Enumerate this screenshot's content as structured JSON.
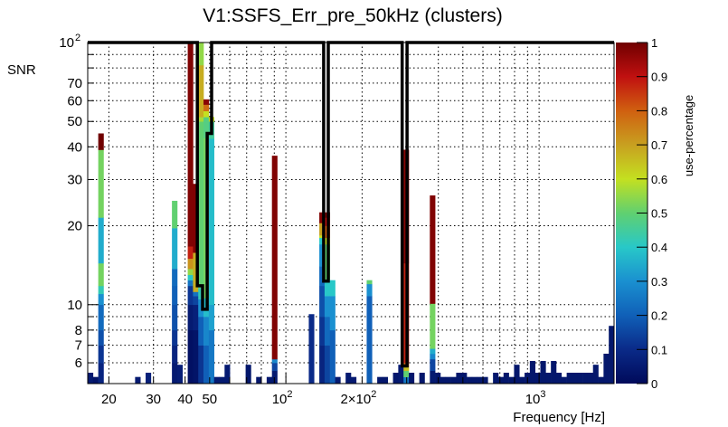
{
  "chart_data": {
    "type": "heatmap",
    "title": "V1:SSFS_Err_pre_50kHz (clusters)",
    "xlabel": "Frequency [Hz]",
    "ylabel": "SNR",
    "zlabel": "use-percentage",
    "xscale": "log",
    "yscale": "log",
    "xlim": [
      16.5,
      1977
    ],
    "ylim": [
      5,
      100
    ],
    "zlim": [
      0,
      1
    ],
    "x_bins": 100,
    "grid": true,
    "x_ticks": [
      {
        "value": 20,
        "label": "20"
      },
      {
        "value": 30,
        "label": "30"
      },
      {
        "value": 40,
        "label": "40"
      },
      {
        "value": 50,
        "label": "50"
      },
      {
        "value": 100,
        "label": "10",
        "sup": "2"
      },
      {
        "value": 200,
        "label": "2×10",
        "sup": "2"
      },
      {
        "value": 1000,
        "label": "10",
        "sup": "3"
      }
    ],
    "x_grid": [
      20,
      30,
      40,
      50,
      60,
      70,
      80,
      90,
      100,
      200,
      300,
      400,
      500,
      600,
      700,
      800,
      900,
      1000
    ],
    "y_ticks": [
      {
        "value": 100,
        "label": "10",
        "sup": "2"
      },
      {
        "value": 70,
        "label": "70"
      },
      {
        "value": 60,
        "label": "60"
      },
      {
        "value": 50,
        "label": "50"
      },
      {
        "value": 40,
        "label": "40"
      },
      {
        "value": 30,
        "label": "30"
      },
      {
        "value": 20,
        "label": "20"
      },
      {
        "value": 10,
        "label": "10"
      },
      {
        "value": 8,
        "label": "8"
      },
      {
        "value": 7,
        "label": "7"
      },
      {
        "value": 6,
        "label": "6"
      }
    ],
    "y_grid": [
      6,
      7,
      8,
      9,
      10,
      20,
      30,
      40,
      50,
      60,
      70,
      80,
      90,
      100
    ],
    "z_ticks": [
      "0",
      "0.1",
      "0.2",
      "0.3",
      "0.4",
      "0.5",
      "0.6",
      "0.7",
      "0.8",
      "0.9",
      "1"
    ],
    "palette": [
      "#000a5a",
      "#0a2a88",
      "#1060b8",
      "#1a90d0",
      "#28c8c8",
      "#60d070",
      "#c4e020",
      "#c8a020",
      "#d06010",
      "#c01010",
      "#700000"
    ],
    "columns": [
      {
        "bin": 0,
        "cells": [
          [
            5.5,
            0.05
          ]
        ]
      },
      {
        "bin": 1,
        "cells": [
          [
            5.3,
            0.03
          ]
        ]
      },
      {
        "bin": 2,
        "cells": [
          [
            6,
            0.08
          ],
          [
            7,
            0.12
          ],
          [
            8,
            0.17
          ],
          [
            10,
            0.22
          ],
          [
            11,
            0.3
          ],
          [
            11.8,
            0.42
          ],
          [
            14.4,
            0.52
          ],
          [
            21.5,
            0.35
          ],
          [
            39,
            0.52
          ],
          [
            45,
            1.0
          ]
        ]
      },
      {
        "bin": 9,
        "cells": [
          [
            5.3,
            0.05
          ]
        ]
      },
      {
        "bin": 11,
        "cells": [
          [
            5.5,
            0.07
          ]
        ]
      },
      {
        "bin": 16,
        "cells": [
          [
            6,
            0.05
          ],
          [
            7,
            0.08
          ],
          [
            8,
            0.12
          ],
          [
            10,
            0.17
          ],
          [
            11.8,
            0.2
          ],
          [
            13.7,
            0.22
          ],
          [
            19.6,
            0.35
          ],
          [
            24.9,
            0.5
          ]
        ]
      },
      {
        "bin": 17,
        "cells": [
          [
            5.9,
            0.06
          ]
        ]
      },
      {
        "bin": 19,
        "cells": [
          [
            8,
            0.02
          ],
          [
            10,
            0.05
          ],
          [
            11.8,
            0.12
          ],
          [
            12.4,
            0.24
          ],
          [
            13,
            0.4
          ],
          [
            13.7,
            0.55
          ],
          [
            15,
            0.72
          ],
          [
            16.7,
            0.88
          ],
          [
            100,
            0.98
          ]
        ]
      },
      {
        "bin": 20,
        "cells": [
          [
            8,
            0.03
          ],
          [
            10,
            0.07
          ],
          [
            10.8,
            0.15
          ],
          [
            11.2,
            0.24
          ],
          [
            15.8,
            0.68
          ],
          [
            28.9,
            0.98
          ]
        ]
      },
      {
        "bin": 21,
        "cells": [
          [
            7,
            0.12
          ],
          [
            9,
            0.2
          ],
          [
            10.5,
            0.3
          ],
          [
            11.6,
            0.42
          ],
          [
            50,
            0.5
          ],
          [
            52,
            0.57
          ],
          [
            82,
            0.68
          ],
          [
            100,
            0.55
          ]
        ]
      },
      {
        "bin": 22,
        "cells": [
          [
            7,
            0.2
          ],
          [
            9,
            0.28
          ],
          [
            10.6,
            0.38
          ],
          [
            43.3,
            0.52
          ],
          [
            52,
            0.48
          ],
          [
            54.8,
            0.6
          ],
          [
            58,
            0.78
          ],
          [
            60.7,
            0.97
          ]
        ]
      },
      {
        "bin": 23,
        "cells": [
          [
            8,
            0.25
          ],
          [
            10,
            0.33
          ],
          [
            43,
            0.38
          ],
          [
            50,
            0.45
          ],
          [
            52,
            0.6
          ]
        ]
      },
      {
        "bin": 24,
        "cells": [
          [
            5.3,
            0.05
          ]
        ]
      },
      {
        "bin": 25,
        "cells": [
          [
            5.3,
            0.05
          ]
        ]
      },
      {
        "bin": 26,
        "cells": [
          [
            5.9,
            0.05
          ]
        ]
      },
      {
        "bin": 30,
        "cells": [
          [
            5.9,
            0.04
          ]
        ]
      },
      {
        "bin": 32,
        "cells": [
          [
            5.3,
            0.04
          ]
        ]
      },
      {
        "bin": 34,
        "cells": [
          [
            5.3,
            0.05
          ]
        ]
      },
      {
        "bin": 35,
        "cells": [
          [
            5.6,
            0.05
          ],
          [
            6,
            0.15
          ],
          [
            6.2,
            0.28
          ],
          [
            37,
            0.98
          ]
        ]
      },
      {
        "bin": 42,
        "cells": [
          [
            9.2,
            0.1
          ]
        ]
      },
      {
        "bin": 44,
        "cells": [
          [
            7,
            0.08
          ],
          [
            9,
            0.12
          ],
          [
            11.8,
            0.17
          ],
          [
            14,
            0.22
          ],
          [
            17,
            0.3
          ],
          [
            18,
            0.4
          ],
          [
            18.4,
            0.6
          ],
          [
            20.5,
            0.7
          ],
          [
            22.5,
            0.98
          ]
        ]
      },
      {
        "bin": 45,
        "cells": [
          [
            7,
            0.15
          ],
          [
            9,
            0.22
          ],
          [
            10.8,
            0.3
          ],
          [
            12.4,
            0.4
          ],
          [
            17,
            0.5
          ],
          [
            18,
            0.6
          ],
          [
            20,
            0.8
          ],
          [
            21.5,
            0.9
          ],
          [
            22.5,
            0.98
          ]
        ]
      },
      {
        "bin": 46,
        "cells": [
          [
            8,
            0.2
          ],
          [
            10.8,
            0.3
          ],
          [
            12.4,
            0.4
          ]
        ]
      },
      {
        "bin": 47,
        "cells": [
          [
            5.3,
            0.05
          ]
        ]
      },
      {
        "bin": 49,
        "cells": [
          [
            5.5,
            0.05
          ]
        ]
      },
      {
        "bin": 50,
        "cells": [
          [
            5.3,
            0.05
          ]
        ]
      },
      {
        "bin": 53,
        "cells": [
          [
            10.8,
            0.2
          ],
          [
            12,
            0.3
          ],
          [
            12.4,
            0.5
          ]
        ]
      },
      {
        "bin": 55,
        "cells": [
          [
            5.3,
            0.04
          ]
        ]
      },
      {
        "bin": 56,
        "cells": [
          [
            5.3,
            0.04
          ]
        ]
      },
      {
        "bin": 58,
        "cells": [
          [
            5.5,
            0.04
          ]
        ]
      },
      {
        "bin": 59,
        "cells": [
          [
            5.9,
            0.05
          ]
        ]
      },
      {
        "bin": 60,
        "cells": [
          [
            5.3,
            0.25
          ],
          [
            5.6,
            0.5
          ],
          [
            5.8,
            0.65
          ],
          [
            6,
            0.78
          ],
          [
            14.4,
            0.88
          ],
          [
            39,
            0.97
          ]
        ]
      },
      {
        "bin": 61,
        "cells": [
          [
            5.5,
            0.04
          ]
        ]
      },
      {
        "bin": 63,
        "cells": [
          [
            5.5,
            0.04
          ]
        ]
      },
      {
        "bin": 65,
        "cells": [
          [
            5.6,
            0.05
          ],
          [
            6.2,
            0.15
          ],
          [
            6.5,
            0.28
          ],
          [
            6.8,
            0.35
          ],
          [
            10.1,
            0.52
          ],
          [
            26.1,
            0.98
          ]
        ]
      },
      {
        "bin": 66,
        "cells": [
          [
            5.5,
            0.04
          ]
        ]
      },
      {
        "bin": 67,
        "cells": [
          [
            5.3,
            0.04
          ]
        ]
      },
      {
        "bin": 68,
        "cells": [
          [
            5.3,
            0.04
          ]
        ]
      },
      {
        "bin": 69,
        "cells": [
          [
            5.3,
            0.04
          ]
        ]
      },
      {
        "bin": 70,
        "cells": [
          [
            5.5,
            0.04
          ]
        ]
      },
      {
        "bin": 71,
        "cells": [
          [
            5.5,
            0.04
          ]
        ]
      },
      {
        "bin": 72,
        "cells": [
          [
            5.3,
            0.04
          ]
        ]
      },
      {
        "bin": 73,
        "cells": [
          [
            5.3,
            0.04
          ]
        ]
      },
      {
        "bin": 74,
        "cells": [
          [
            5.3,
            0.04
          ]
        ]
      },
      {
        "bin": 75,
        "cells": [
          [
            5.3,
            0.04
          ]
        ]
      },
      {
        "bin": 77,
        "cells": [
          [
            5.5,
            0.04
          ]
        ]
      },
      {
        "bin": 78,
        "cells": [
          [
            5.3,
            0.04
          ]
        ]
      },
      {
        "bin": 79,
        "cells": [
          [
            5.5,
            0.04
          ]
        ]
      },
      {
        "bin": 80,
        "cells": [
          [
            5.3,
            0.04
          ]
        ]
      },
      {
        "bin": 81,
        "cells": [
          [
            5.9,
            0.04
          ]
        ]
      },
      {
        "bin": 82,
        "cells": [
          [
            5.3,
            0.04
          ]
        ]
      },
      {
        "bin": 83,
        "cells": [
          [
            5.5,
            0.04
          ]
        ]
      },
      {
        "bin": 84,
        "cells": [
          [
            6.1,
            0.04
          ]
        ]
      },
      {
        "bin": 85,
        "cells": [
          [
            5.5,
            0.04
          ]
        ]
      },
      {
        "bin": 86,
        "cells": [
          [
            6.1,
            0.04
          ]
        ]
      },
      {
        "bin": 87,
        "cells": [
          [
            5.5,
            0.04
          ]
        ]
      },
      {
        "bin": 88,
        "cells": [
          [
            6.1,
            0.04
          ]
        ]
      },
      {
        "bin": 89,
        "cells": [
          [
            5.5,
            0.04
          ]
        ]
      },
      {
        "bin": 90,
        "cells": [
          [
            5.3,
            0.04
          ]
        ]
      },
      {
        "bin": 91,
        "cells": [
          [
            5.5,
            0.04
          ]
        ]
      },
      {
        "bin": 92,
        "cells": [
          [
            5.5,
            0.04
          ]
        ]
      },
      {
        "bin": 93,
        "cells": [
          [
            5.5,
            0.04
          ]
        ]
      },
      {
        "bin": 94,
        "cells": [
          [
            5.5,
            0.04
          ]
        ]
      },
      {
        "bin": 95,
        "cells": [
          [
            5.5,
            0.04
          ]
        ]
      },
      {
        "bin": 96,
        "cells": [
          [
            5.9,
            0.04
          ]
        ]
      },
      {
        "bin": 97,
        "cells": [
          [
            5.3,
            0.04
          ]
        ]
      },
      {
        "bin": 98,
        "cells": [
          [
            6.5,
            0.04
          ]
        ]
      },
      {
        "bin": 99,
        "cells": [
          [
            8.3,
            0.04
          ]
        ]
      }
    ],
    "threshold_line": [
      [
        16.5,
        100
      ],
      [
        44.7,
        100
      ],
      [
        44.7,
        11.8
      ],
      [
        46.9,
        11.8
      ],
      [
        46.9,
        9.6
      ],
      [
        48.9,
        9.6
      ],
      [
        48.9,
        45
      ],
      [
        50.9,
        45
      ],
      [
        50.9,
        100
      ],
      [
        141,
        100
      ],
      [
        141,
        12.3
      ],
      [
        147,
        12.3
      ],
      [
        147,
        100
      ],
      [
        288,
        100
      ],
      [
        288,
        5.84
      ],
      [
        301,
        5.84
      ],
      [
        301,
        100
      ],
      [
        1977,
        100
      ]
    ]
  }
}
